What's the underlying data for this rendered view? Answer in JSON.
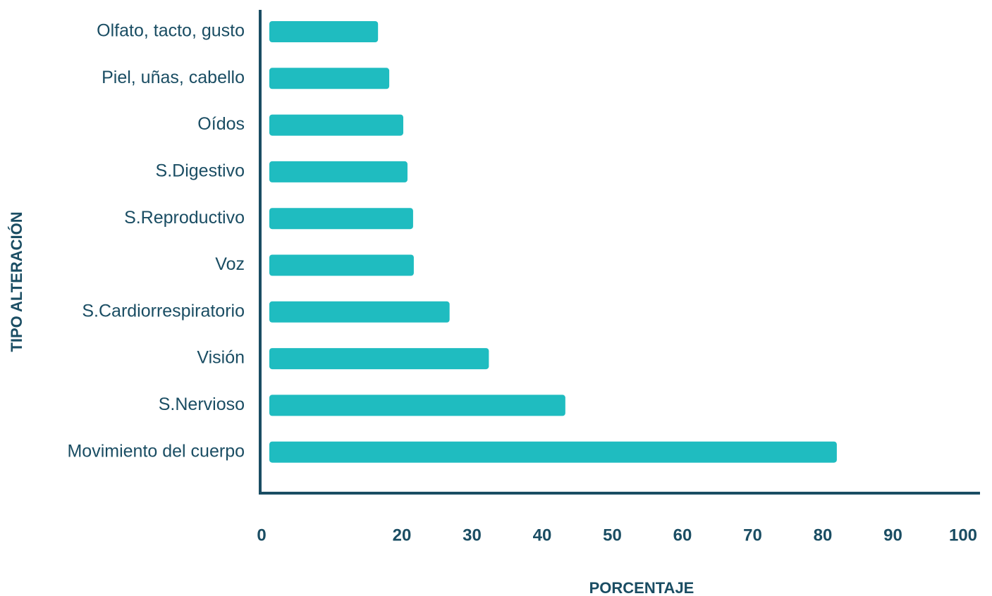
{
  "chart_data": {
    "type": "barh",
    "xlabel": "PORCENTAJE",
    "ylabel": "TIPO ALTERACIÓN",
    "categories": [
      "Olfato, tacto, gusto",
      "Piel, uñas, cabello",
      "Oídos",
      "S.Digestivo",
      "S.Reproductivo",
      "Voz",
      "S.Cardiorrespiratorio",
      "Visión",
      "S.Nervioso",
      "Movimiento del cuerpo"
    ],
    "values": [
      16.6,
      18.2,
      20.2,
      20.8,
      21.6,
      21.7,
      26.8,
      32.4,
      43.3,
      82
    ],
    "color": "#1fbcc0",
    "xlim": [
      0,
      100
    ],
    "xticks": [
      0,
      20,
      30,
      40,
      50,
      60,
      70,
      80,
      90,
      100
    ],
    "grid": false
  }
}
